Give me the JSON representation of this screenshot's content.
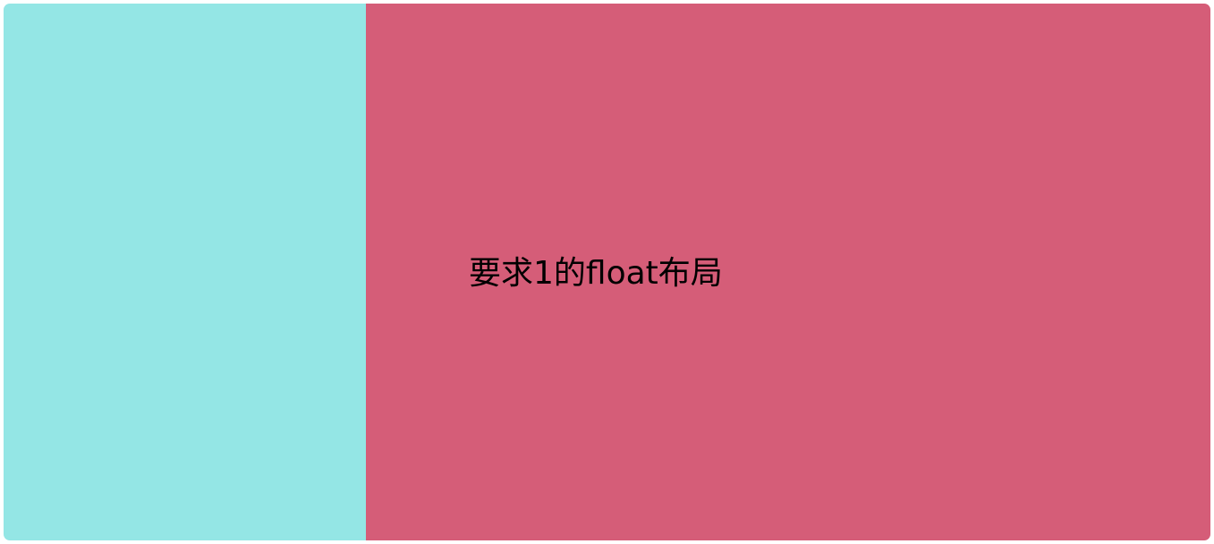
{
  "right_panel": {
    "text": "要求1的float布局"
  },
  "colors": {
    "left_panel": "#94e6e5",
    "right_panel": "#d55d78",
    "text": "#000000"
  }
}
